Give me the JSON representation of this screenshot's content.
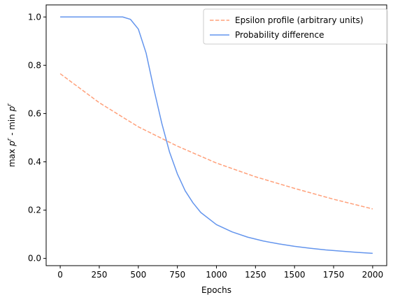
{
  "chart_data": {
    "type": "line",
    "title": "",
    "xlabel": "Epochs",
    "ylabel": "max p^r - min p^r",
    "xlim": [
      -90,
      2090
    ],
    "ylim": [
      -0.03,
      1.05
    ],
    "xticks": [
      0,
      250,
      500,
      750,
      1000,
      1250,
      1500,
      1750,
      2000
    ],
    "yticks": [
      0.0,
      0.2,
      0.4,
      0.6,
      0.8,
      1.0
    ],
    "xtick_labels": [
      "0",
      "250",
      "500",
      "750",
      "1000",
      "1250",
      "1500",
      "1750",
      "2000"
    ],
    "ytick_labels": [
      "0.0",
      "0.2",
      "0.4",
      "0.6",
      "0.8",
      "1.0"
    ],
    "grid": false,
    "legend_position": "top-right",
    "series": [
      {
        "name": "Epsilon profile (arbitrary units)",
        "color": "#FFA07A",
        "style": "dashed",
        "x": [
          0,
          250,
          500,
          750,
          1000,
          1250,
          1500,
          1750,
          2000
        ],
        "y": [
          0.765,
          0.645,
          0.545,
          0.465,
          0.395,
          0.338,
          0.29,
          0.245,
          0.205
        ]
      },
      {
        "name": "Probability difference",
        "color": "#6495ED",
        "style": "solid",
        "x": [
          0,
          100,
          200,
          300,
          400,
          450,
          500,
          550,
          600,
          650,
          700,
          750,
          800,
          850,
          900,
          1000,
          1100,
          1200,
          1300,
          1400,
          1500,
          1600,
          1700,
          1800,
          1900,
          2000
        ],
        "y": [
          1.0,
          1.0,
          1.0,
          1.0,
          1.0,
          0.99,
          0.95,
          0.85,
          0.7,
          0.56,
          0.44,
          0.35,
          0.28,
          0.23,
          0.19,
          0.14,
          0.11,
          0.088,
          0.072,
          0.06,
          0.05,
          0.042,
          0.035,
          0.03,
          0.025,
          0.021
        ]
      }
    ]
  }
}
